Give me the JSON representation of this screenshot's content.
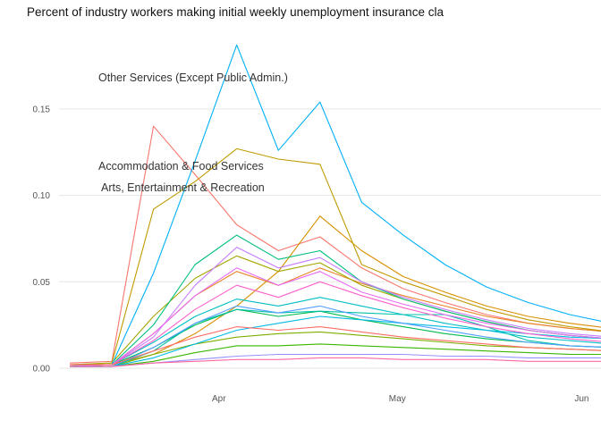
{
  "title": "Percent of industry workers making initial weekly unemployment insurance cla",
  "chart_data": {
    "type": "line",
    "title": "Percent of industry workers making initial weekly unemployment insurance cla",
    "xlabel": "",
    "ylabel": "",
    "x_tick_labels": [
      "Apr",
      "May",
      "Jun"
    ],
    "y_tick_labels": [
      "0.00",
      "0.05",
      "0.10",
      "0.15"
    ],
    "ylim": [
      0,
      0.19
    ],
    "grid": "horizontal-only",
    "legend": "none",
    "background_color": "#FFFFFF",
    "gridline_color": "#E6E6E6",
    "axis_text_color": "#555555",
    "weeks": [
      "Mar 7",
      "Mar 14",
      "Mar 21",
      "Mar 28",
      "Apr 4",
      "Apr 11",
      "Apr 18",
      "Apr 25",
      "May 2",
      "May 9",
      "May 16",
      "May 23",
      "May 30",
      "Jun 6"
    ],
    "annotations": [
      {
        "text": "Other Services (Except Public Admin.)",
        "series_color": "#00B0F6"
      },
      {
        "text": "Accommodation & Food Services",
        "series_color": "#F8766D"
      },
      {
        "text": "Arts, Entertainment & Recreation",
        "series_color": "#C09B00"
      }
    ],
    "series": [
      {
        "id": "industry-01",
        "label": "Accommodation & Food Services",
        "color": "#F8766D",
        "values": [
          0.003,
          0.004,
          0.14,
          0.112,
          0.083,
          0.068,
          0.076,
          0.058,
          0.046,
          0.038,
          0.031,
          0.026,
          0.023,
          0.021
        ]
      },
      {
        "id": "industry-02",
        "label": "",
        "color": "#E88526",
        "values": [
          0.002,
          0.002,
          0.02,
          0.042,
          0.056,
          0.048,
          0.058,
          0.049,
          0.042,
          0.036,
          0.03,
          0.026,
          0.023,
          0.021
        ]
      },
      {
        "id": "industry-03",
        "label": "",
        "color": "#D89000",
        "values": [
          0.001,
          0.002,
          0.008,
          0.02,
          0.036,
          0.056,
          0.088,
          0.068,
          0.053,
          0.044,
          0.036,
          0.03,
          0.026,
          0.023
        ]
      },
      {
        "id": "industry-04",
        "label": "Arts, Entertainment & Recreation",
        "color": "#C09B00",
        "values": [
          0.002,
          0.003,
          0.092,
          0.108,
          0.127,
          0.121,
          0.118,
          0.06,
          0.05,
          0.042,
          0.034,
          0.028,
          0.024,
          0.021
        ]
      },
      {
        "id": "industry-05",
        "label": "",
        "color": "#A3A500",
        "values": [
          0.002,
          0.003,
          0.03,
          0.052,
          0.065,
          0.056,
          0.061,
          0.048,
          0.04,
          0.033,
          0.027,
          0.022,
          0.019,
          0.017
        ]
      },
      {
        "id": "industry-06",
        "label": "",
        "color": "#7CAE00",
        "values": [
          0.001,
          0.001,
          0.008,
          0.014,
          0.018,
          0.02,
          0.021,
          0.019,
          0.017,
          0.015,
          0.013,
          0.012,
          0.011,
          0.01
        ]
      },
      {
        "id": "industry-07",
        "label": "",
        "color": "#39B600",
        "values": [
          0.001,
          0.001,
          0.004,
          0.009,
          0.013,
          0.013,
          0.014,
          0.013,
          0.012,
          0.011,
          0.01,
          0.009,
          0.008,
          0.008
        ]
      },
      {
        "id": "industry-08",
        "label": "",
        "color": "#00BB4E",
        "values": [
          0.001,
          0.002,
          0.012,
          0.025,
          0.034,
          0.03,
          0.033,
          0.028,
          0.024,
          0.02,
          0.017,
          0.015,
          0.013,
          0.012
        ]
      },
      {
        "id": "industry-09",
        "label": "",
        "color": "#00BF7D",
        "values": [
          0.001,
          0.002,
          0.025,
          0.06,
          0.077,
          0.063,
          0.068,
          0.05,
          0.04,
          0.033,
          0.027,
          0.022,
          0.019,
          0.017
        ]
      },
      {
        "id": "industry-10",
        "label": "",
        "color": "#00C1A7",
        "values": [
          0.001,
          0.001,
          0.01,
          0.026,
          0.034,
          0.032,
          0.033,
          0.032,
          0.031,
          0.031,
          0.024,
          0.016,
          0.013,
          0.012
        ]
      },
      {
        "id": "industry-11",
        "label": "",
        "color": "#00BFC4",
        "values": [
          0.002,
          0.002,
          0.015,
          0.03,
          0.04,
          0.036,
          0.041,
          0.036,
          0.031,
          0.026,
          0.022,
          0.018,
          0.016,
          0.014
        ]
      },
      {
        "id": "industry-12",
        "label": "",
        "color": "#00BAE3",
        "values": [
          0.001,
          0.001,
          0.006,
          0.014,
          0.022,
          0.026,
          0.03,
          0.028,
          0.026,
          0.024,
          0.022,
          0.02,
          0.018,
          0.017
        ]
      },
      {
        "id": "industry-13",
        "label": "Other Services (Except Public Admin.)",
        "color": "#00B0F6",
        "values": [
          0.002,
          0.002,
          0.055,
          0.12,
          0.187,
          0.126,
          0.154,
          0.096,
          0.077,
          0.06,
          0.047,
          0.038,
          0.031,
          0.026
        ]
      },
      {
        "id": "industry-14",
        "label": "",
        "color": "#529EFF",
        "values": [
          0.001,
          0.001,
          0.012,
          0.026,
          0.036,
          0.032,
          0.036,
          0.03,
          0.026,
          0.022,
          0.018,
          0.015,
          0.013,
          0.012
        ]
      },
      {
        "id": "industry-15",
        "label": "",
        "color": "#9590FF",
        "values": [
          0.001,
          0.001,
          0.003,
          0.005,
          0.007,
          0.008,
          0.008,
          0.008,
          0.008,
          0.007,
          0.007,
          0.006,
          0.006,
          0.006
        ]
      },
      {
        "id": "industry-16",
        "label": "",
        "color": "#C77CFF",
        "values": [
          0.001,
          0.002,
          0.018,
          0.048,
          0.07,
          0.058,
          0.064,
          0.05,
          0.041,
          0.034,
          0.028,
          0.023,
          0.02,
          0.018
        ]
      },
      {
        "id": "industry-17",
        "label": "",
        "color": "#E76BF3",
        "values": [
          0.002,
          0.002,
          0.02,
          0.042,
          0.058,
          0.048,
          0.056,
          0.044,
          0.037,
          0.031,
          0.026,
          0.022,
          0.019,
          0.017
        ]
      },
      {
        "id": "industry-18",
        "label": "",
        "color": "#FD61CA",
        "values": [
          0.002,
          0.002,
          0.016,
          0.034,
          0.048,
          0.041,
          0.05,
          0.042,
          0.035,
          0.029,
          0.024,
          0.02,
          0.017,
          0.015
        ]
      },
      {
        "id": "industry-19",
        "label": "",
        "color": "#FF67A4",
        "values": [
          0.001,
          0.001,
          0.003,
          0.004,
          0.005,
          0.005,
          0.006,
          0.006,
          0.005,
          0.005,
          0.005,
          0.004,
          0.004,
          0.004
        ]
      },
      {
        "id": "industry-20",
        "label": "",
        "color": "#FF6C67",
        "values": [
          0.002,
          0.002,
          0.01,
          0.018,
          0.024,
          0.022,
          0.024,
          0.021,
          0.018,
          0.016,
          0.014,
          0.012,
          0.011,
          0.01
        ]
      }
    ]
  }
}
